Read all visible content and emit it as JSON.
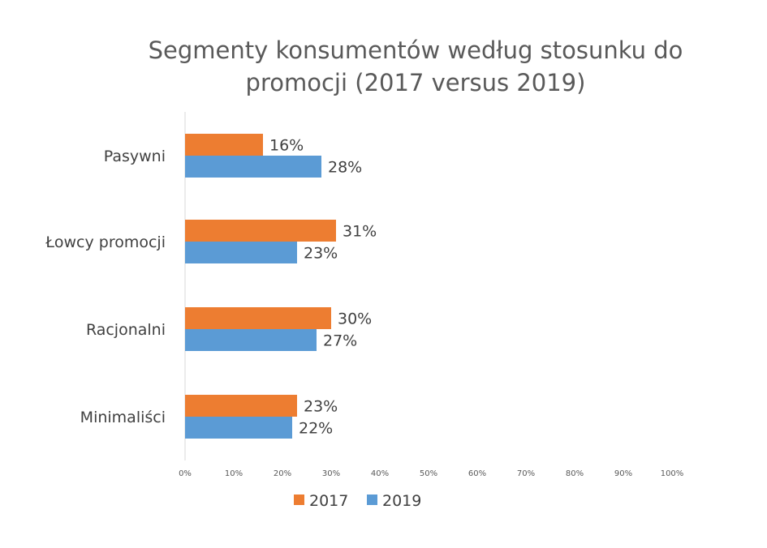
{
  "chart_data": {
    "type": "bar",
    "orientation": "horizontal",
    "title": "Segmenty konsumentów według stosunku do promocji (2017 versus 2019)",
    "title_lines": [
      "Segmenty konsumentów według stosunku do",
      "promocji (2017 versus 2019)"
    ],
    "categories": [
      "Pasywni",
      "Łowcy promocji",
      "Racjonalni",
      "Minimaliści"
    ],
    "series": [
      {
        "name": "2017",
        "color": "#ED7D31",
        "values": [
          16,
          31,
          30,
          23
        ],
        "labels": [
          "16%",
          "31%",
          "30%",
          "23%"
        ]
      },
      {
        "name": "2019",
        "color": "#5B9BD5",
        "values": [
          28,
          23,
          27,
          22
        ],
        "labels": [
          "28%",
          "23%",
          "27%",
          "22%"
        ]
      }
    ],
    "xlim": [
      0,
      100
    ],
    "xticks": [
      "0%",
      "10%",
      "20%",
      "30%",
      "40%",
      "50%",
      "60%",
      "70%",
      "80%",
      "90%",
      "100%"
    ],
    "grid": false,
    "legend_position": "bottom",
    "xlabel": "",
    "ylabel": ""
  }
}
